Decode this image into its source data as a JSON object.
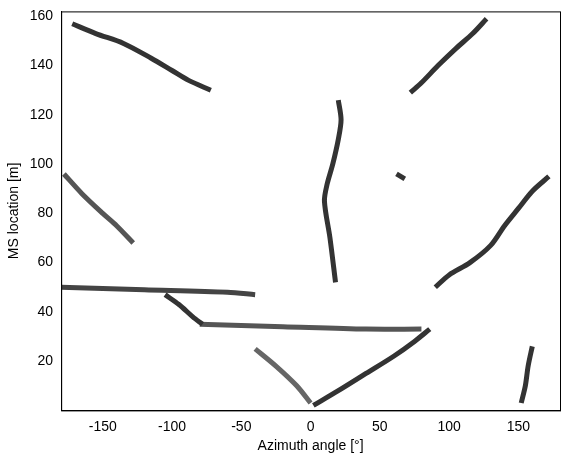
{
  "chart_data": {
    "type": "line",
    "x_label": "Azimuth angle [°]",
    "y_label": "MS location [m]",
    "xlim": [
      -180,
      180
    ],
    "xticks": [
      -150,
      -100,
      -50,
      0,
      50,
      100,
      150
    ],
    "ylim": [
      0,
      162
    ],
    "yticks": [
      20,
      40,
      60,
      80,
      100,
      120,
      140,
      160
    ],
    "grid": false,
    "marker": "none",
    "line_style": "solid",
    "series": [
      {
        "color": "#333333",
        "x": [
          -172,
          -155,
          -135,
          -115,
          -100,
          -88,
          -72
        ],
        "y": [
          157,
          153,
          149,
          143,
          138,
          134,
          130
        ]
      },
      {
        "color": "#333333",
        "x": [
          72,
          80,
          92,
          105,
          117,
          127
        ],
        "y": [
          129,
          133,
          140,
          147,
          153,
          159
        ]
      },
      {
        "color": "#333333",
        "x": [
          20,
          22,
          20,
          16,
          12,
          10,
          14,
          18
        ],
        "y": [
          126,
          118,
          110,
          100,
          92,
          85,
          70,
          52
        ]
      },
      {
        "color": "#333333",
        "x": [
          90,
          100,
          115,
          130,
          140,
          150,
          160,
          172
        ],
        "y": [
          50,
          55,
          60,
          67,
          75,
          82,
          89,
          95
        ]
      },
      {
        "color": "#555555",
        "x": [
          -178,
          -165,
          -150,
          -140,
          -128
        ],
        "y": [
          96,
          88,
          80,
          75,
          68
        ]
      },
      {
        "color": "#333333",
        "x": [
          -105,
          -95,
          -85,
          -78
        ],
        "y": [
          47,
          43,
          38,
          35
        ]
      },
      {
        "color": "#333333",
        "x": [
          2,
          20,
          40,
          60,
          75,
          86
        ],
        "y": [
          2,
          8,
          15,
          22,
          28,
          33
        ]
      },
      {
        "color": "#333333",
        "x": [
          152,
          155,
          157,
          160
        ],
        "y": [
          3,
          10,
          18,
          26
        ]
      },
      {
        "color": "#666666",
        "x": [
          -40,
          -25,
          -10,
          0
        ],
        "y": [
          25,
          18,
          10,
          3
        ]
      },
      {
        "color": "#333333",
        "x": [
          62,
          68
        ],
        "y": [
          96,
          94
        ]
      },
      {
        "color": "#444444",
        "x": [
          -180,
          -120,
          -60,
          -40
        ],
        "y": [
          50,
          49,
          48,
          47
        ]
      },
      {
        "color": "#555555",
        "x": [
          -80,
          -20,
          40,
          80
        ],
        "y": [
          35,
          34,
          33,
          33
        ]
      }
    ]
  }
}
